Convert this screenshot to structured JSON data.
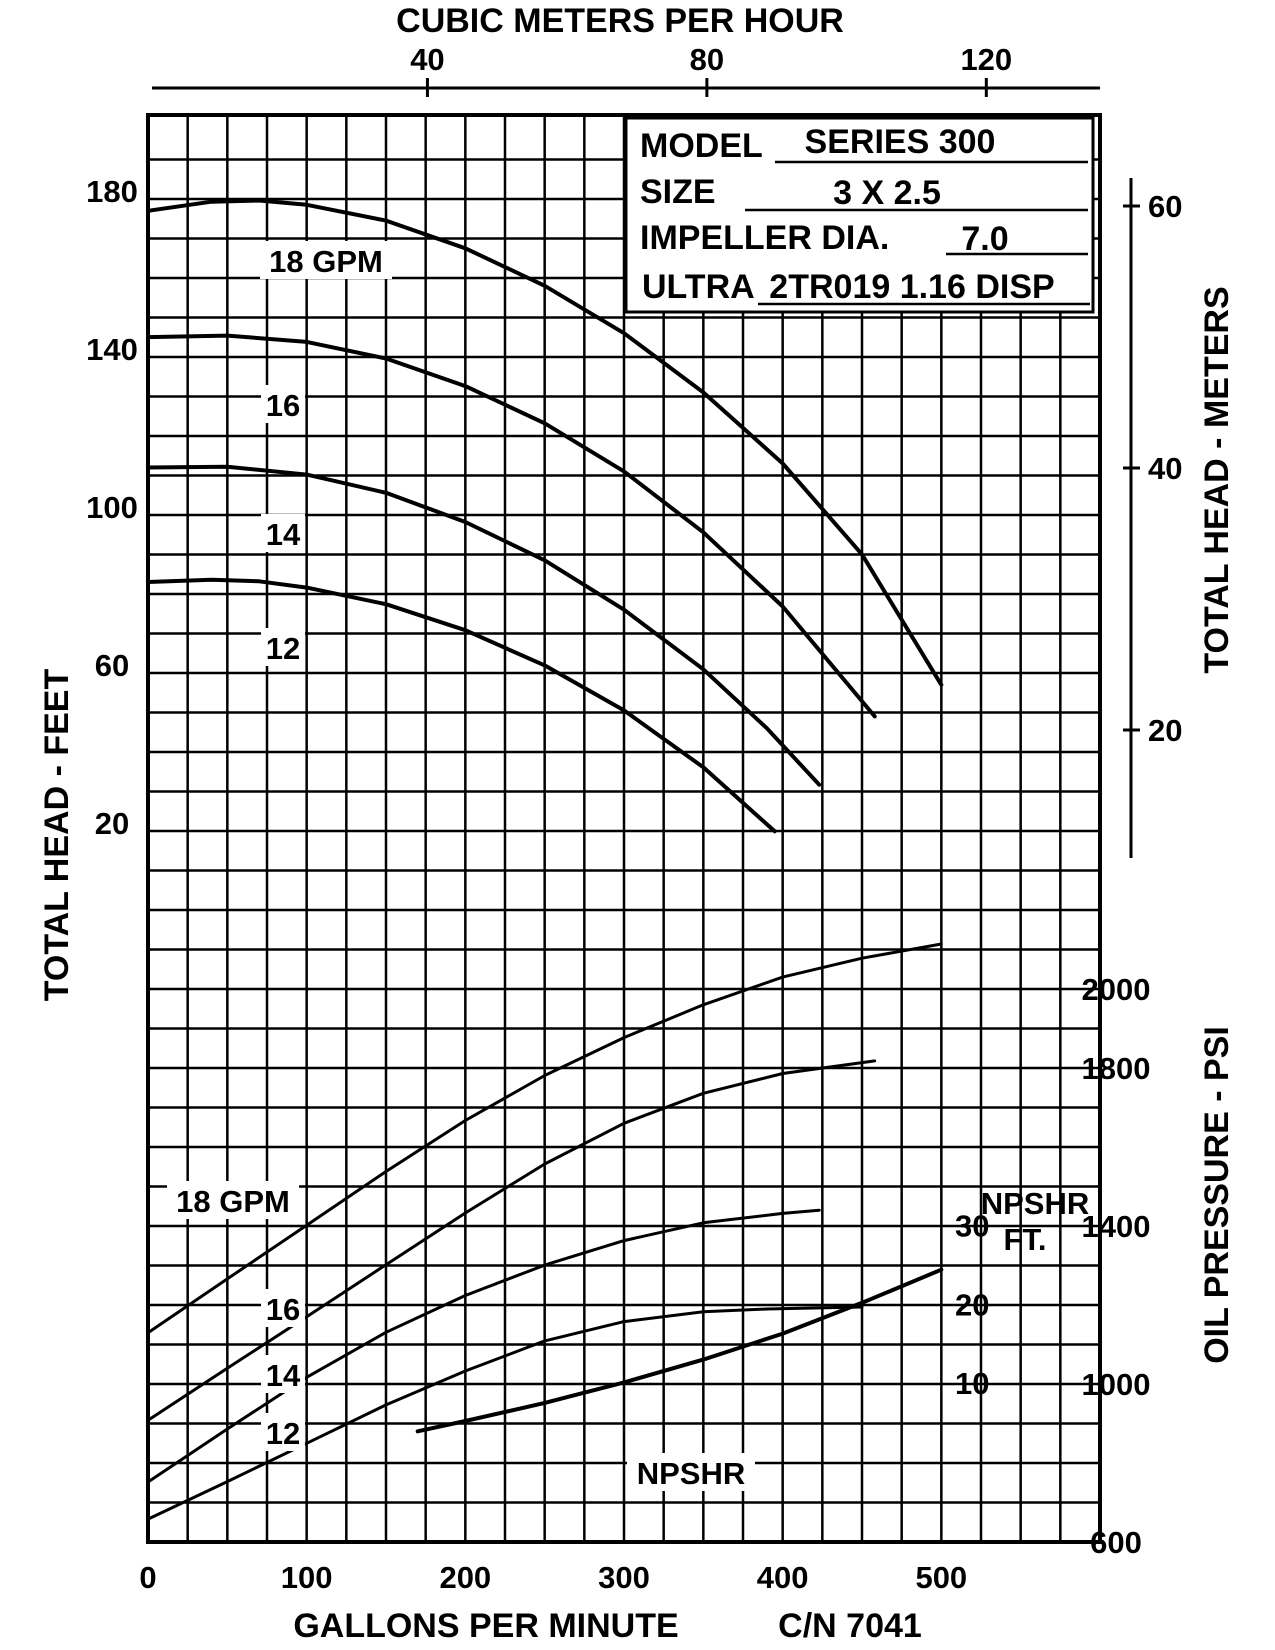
{
  "chart_data": {
    "type": "line",
    "axes": {
      "x_bottom": {
        "label": "GALLONS PER MINUTE",
        "ticks": [
          0,
          100,
          200,
          300,
          400,
          500
        ],
        "range": [
          0,
          600
        ]
      },
      "x_top": {
        "label": "CUBIC METERS PER HOUR",
        "ticks": [
          40,
          80,
          120
        ]
      },
      "y_left": {
        "label": "TOTAL HEAD - FEET",
        "ticks": [
          20,
          60,
          100,
          140,
          180
        ]
      },
      "y_right_head": {
        "label": "TOTAL HEAD - METERS",
        "ticks": [
          20,
          40,
          60
        ]
      },
      "y_right_oil": {
        "label": "OIL PRESSURE - PSI",
        "ticks": [
          600,
          1000,
          1400,
          1800,
          2000
        ]
      },
      "y_right_npshr": {
        "label_line1": "NPSHR",
        "label_line2": "FT.",
        "ticks": [
          10,
          20,
          30
        ]
      }
    },
    "footer_code": "C/N 7041",
    "info_box": {
      "model_label": "MODEL",
      "model_value": "SERIES 300",
      "size_label": "SIZE",
      "size_value": "3 X 2.5",
      "impeller_label": "IMPELLER DIA.",
      "impeller_value": "7.0",
      "ultra_label": "ULTRA",
      "ultra_value": "2TR019 1.16 DISP"
    },
    "head_curves": [
      {
        "label": "18 GPM",
        "x": [
          0,
          40,
          70,
          100,
          150,
          200,
          250,
          300,
          350,
          400,
          450,
          500
        ],
        "y": [
          175,
          177.3,
          177.6,
          176.5,
          172.5,
          165.5,
          156,
          144,
          129,
          111,
          88,
          55
        ]
      },
      {
        "label": "16",
        "x": [
          0,
          50,
          100,
          150,
          200,
          250,
          300,
          350,
          400,
          458
        ],
        "y": [
          143,
          143.4,
          141.8,
          137.6,
          130.6,
          121.2,
          109,
          93.6,
          74.8,
          47
        ]
      },
      {
        "label": "14",
        "x": [
          0,
          50,
          100,
          150,
          200,
          250,
          300,
          350,
          390,
          423
        ],
        "y": [
          110,
          110.2,
          108.2,
          103.6,
          96.2,
          86.5,
          74,
          58.9,
          44,
          29.7
        ]
      },
      {
        "label": "12",
        "x": [
          0,
          40,
          70,
          100,
          150,
          200,
          250,
          300,
          350,
          395
        ],
        "y": [
          81,
          81.6,
          81.2,
          79.6,
          75.4,
          68.8,
          59.9,
          48.5,
          34.1,
          17.9
        ]
      }
    ],
    "oil_curves": [
      {
        "label": "18 GPM",
        "x": [
          0,
          50,
          100,
          150,
          200,
          250,
          300,
          350,
          400,
          450,
          500
        ],
        "y": [
          1130,
          1266,
          1402,
          1538,
          1667,
          1781,
          1877,
          1960,
          2030,
          2078,
          2114
        ]
      },
      {
        "label": "16",
        "x": [
          0,
          50,
          100,
          150,
          200,
          250,
          300,
          350,
          400,
          458
        ],
        "y": [
          908,
          1040,
          1170,
          1302,
          1433,
          1557,
          1660,
          1736,
          1786,
          1818
        ]
      },
      {
        "label": "14",
        "x": [
          0,
          50,
          100,
          150,
          200,
          250,
          300,
          350,
          400,
          423
        ],
        "y": [
          752,
          886,
          1017,
          1131,
          1224,
          1301,
          1363,
          1408,
          1432,
          1440
        ]
      },
      {
        "label": "12",
        "x": [
          0,
          50,
          100,
          150,
          200,
          250,
          300,
          350,
          390,
          450
        ],
        "y": [
          658,
          753,
          850,
          947,
          1033,
          1109,
          1158,
          1183,
          1190,
          1195
        ]
      }
    ],
    "npshr_curve": {
      "label": "NPSHR",
      "x": [
        170,
        200,
        250,
        300,
        350,
        400,
        450,
        500
      ],
      "y": [
        3.9,
        5.2,
        7.5,
        10.1,
        13,
        16.3,
        20.2,
        24.4
      ]
    },
    "grid": true
  }
}
